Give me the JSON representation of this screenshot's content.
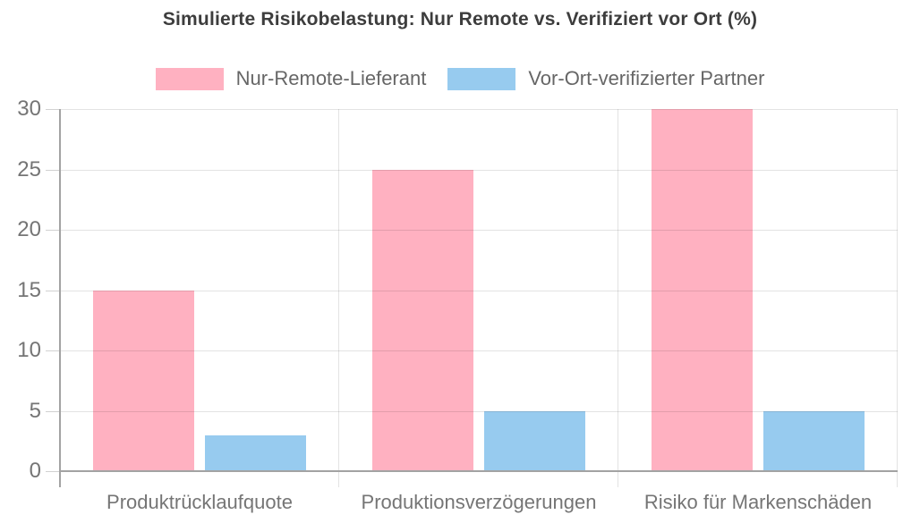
{
  "chart_data": {
    "type": "bar",
    "title": "Simulierte Risikobelastung: Nur Remote vs. Verifiziert vor Ort (%)",
    "categories": [
      "Produktrücklaufquote",
      "Produktionsverzögerungen",
      "Risiko für Markenschäden"
    ],
    "series": [
      {
        "name": "Nur-Remote-Lieferant",
        "color": "#ffb1c1",
        "values": [
          15,
          25,
          30
        ]
      },
      {
        "name": "Vor-Ort-verifizierter Partner",
        "color": "#97cbef",
        "values": [
          3,
          5,
          5
        ]
      }
    ],
    "xlabel": "",
    "ylabel": "",
    "ylim": [
      0,
      30
    ],
    "yticks": [
      0,
      5,
      10,
      15,
      20,
      25,
      30
    ],
    "grid": true,
    "legend_position": "top"
  },
  "colors": {
    "axis": "#a3a3a3",
    "gridline": "#e3e3e3",
    "tick_label": "#757575",
    "legend_label": "#666666",
    "title": "#3d3d3d"
  }
}
